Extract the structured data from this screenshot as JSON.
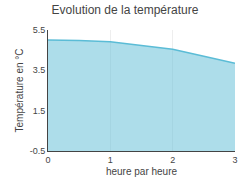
{
  "chart_data": {
    "type": "area",
    "title": "Evolution de la température",
    "xlabel": "heure par heure",
    "ylabel": "Température en °C",
    "x": [
      0,
      0.5,
      1.0,
      1.5,
      2.0,
      2.5,
      3.0
    ],
    "values": [
      5.0,
      4.98,
      4.92,
      4.75,
      4.55,
      4.2,
      3.85
    ],
    "color": "#5bbcd6",
    "xlim": [
      0,
      3
    ],
    "ylim": [
      -0.5,
      5.5
    ],
    "xticks": [
      0,
      1,
      2,
      3
    ],
    "yticks": [
      -0.5,
      1.5,
      3.5,
      5.5
    ],
    "grid": "x"
  }
}
